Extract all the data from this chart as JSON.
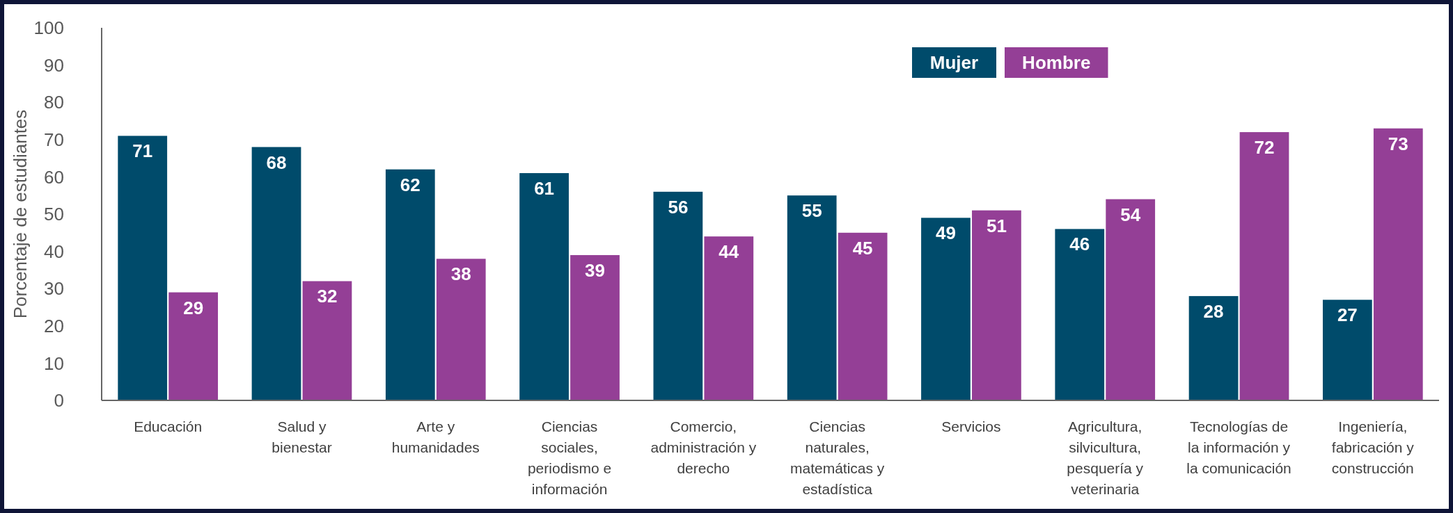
{
  "chart_data": {
    "type": "bar",
    "ylabel": "Porcentaje de estudiantes",
    "categories": [
      "Educación",
      "Salud y bienestar",
      "Arte y humanidades",
      "Ciencias sociales, periodismo e información",
      "Comercio, administración y derecho",
      "Ciencias naturales, matemáticas y estadística",
      "Servicios",
      "Agricultura, silvicultura, pesquería y veterinaria",
      "Tecnologías de la información y la comunicación",
      "Ingeniería, fabricación y construcción"
    ],
    "series": [
      {
        "name": "Mujer",
        "color": "#004b6b",
        "values": [
          71,
          68,
          62,
          61,
          56,
          55,
          49,
          46,
          28,
          27
        ]
      },
      {
        "name": "Hombre",
        "color": "#943f96",
        "values": [
          29,
          32,
          38,
          39,
          44,
          45,
          51,
          54,
          72,
          73
        ]
      }
    ],
    "ylim": [
      0,
      100
    ],
    "yticks": [
      0,
      10,
      20,
      30,
      40,
      50,
      60,
      70,
      80,
      90,
      100
    ],
    "grid": false,
    "legend": "top",
    "data_labels": true
  }
}
